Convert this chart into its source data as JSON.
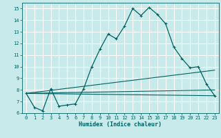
{
  "title": "",
  "xlabel": "Humidex (Indice chaleur)",
  "xlim": [
    -0.5,
    23.5
  ],
  "ylim": [
    6,
    15.5
  ],
  "yticks": [
    6,
    7,
    8,
    9,
    10,
    11,
    12,
    13,
    14,
    15
  ],
  "xticks": [
    0,
    1,
    2,
    3,
    4,
    5,
    6,
    7,
    8,
    9,
    10,
    11,
    12,
    13,
    14,
    15,
    16,
    17,
    18,
    19,
    20,
    21,
    22,
    23
  ],
  "bg_color": "#c8eaea",
  "grid_color": "#ffffff",
  "line_color": "#006060",
  "series_main_x": [
    0,
    1,
    2,
    3,
    4,
    5,
    6,
    7,
    8,
    9,
    10,
    11,
    12,
    13,
    14,
    15,
    16,
    17,
    18,
    19,
    20,
    21,
    22,
    23
  ],
  "series_main_y": [
    7.7,
    6.5,
    6.2,
    8.1,
    6.6,
    6.7,
    6.8,
    8.1,
    10.0,
    11.5,
    12.8,
    12.4,
    13.5,
    15.0,
    14.4,
    15.1,
    14.5,
    13.7,
    11.7,
    10.7,
    9.9,
    10.0,
    8.5,
    7.5
  ],
  "lines": [
    {
      "x": [
        0,
        23
      ],
      "y": [
        7.7,
        7.5
      ]
    },
    {
      "x": [
        0,
        23
      ],
      "y": [
        7.7,
        8.0
      ]
    },
    {
      "x": [
        0,
        23
      ],
      "y": [
        7.7,
        9.7
      ]
    }
  ]
}
